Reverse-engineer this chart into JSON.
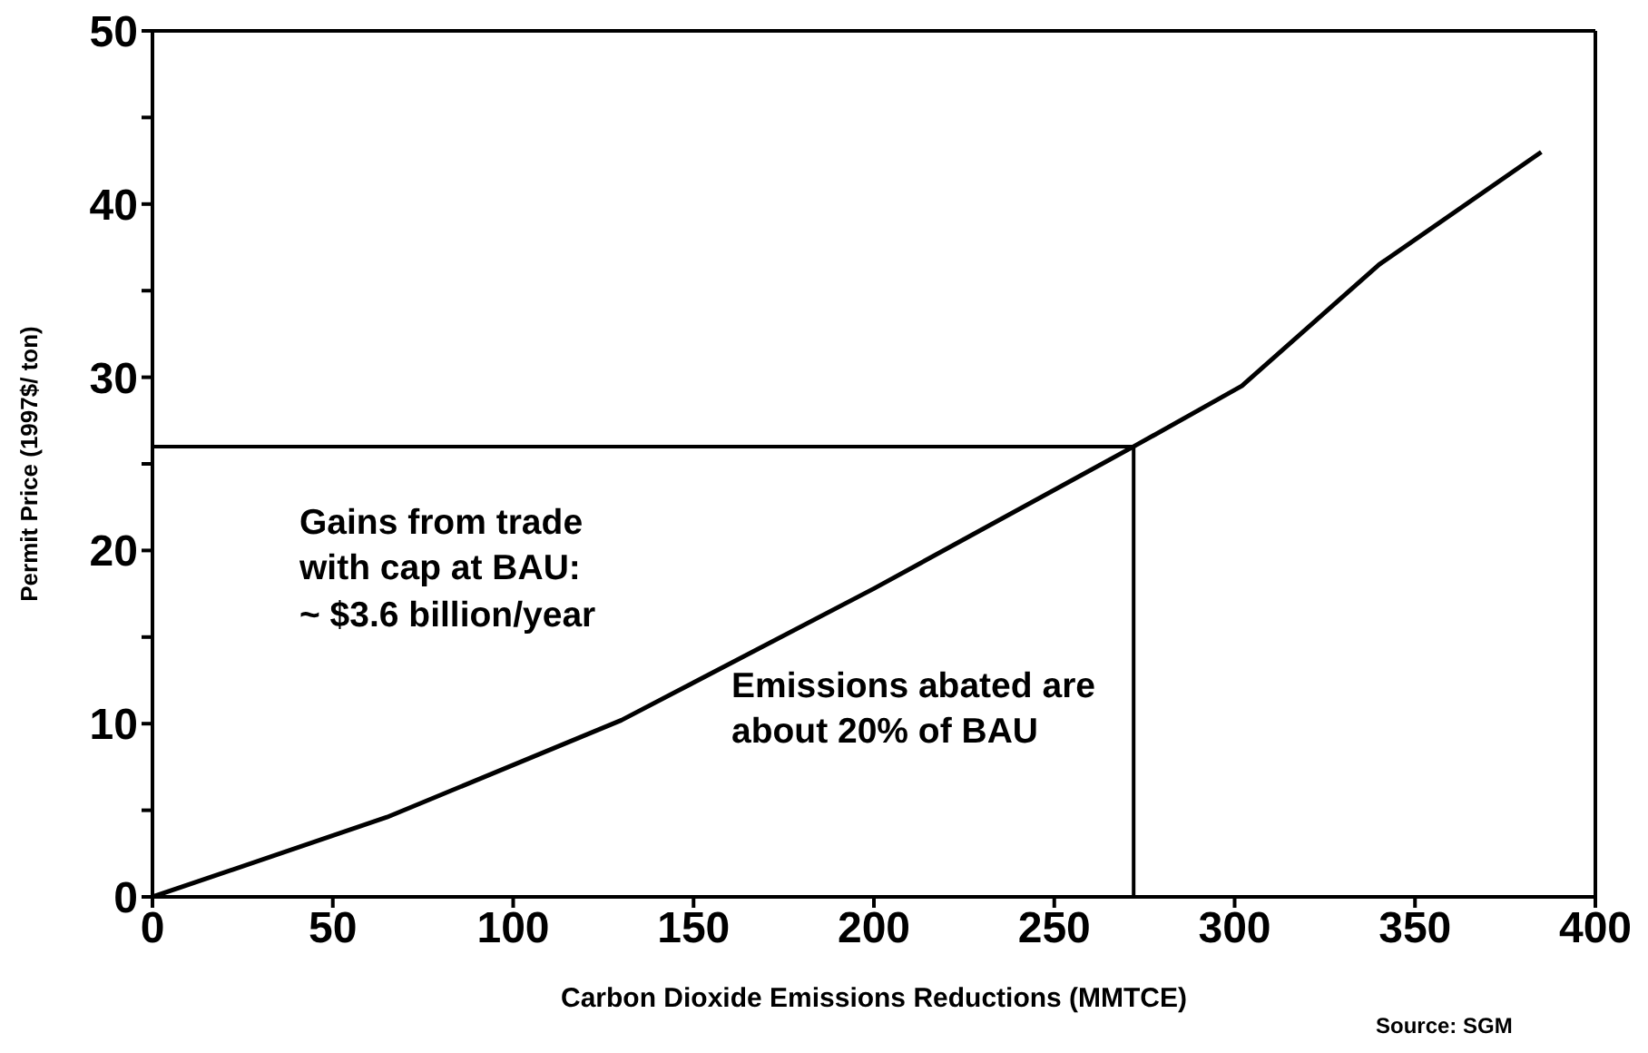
{
  "chart_data": {
    "type": "line",
    "xlabel": "Carbon Dioxide Emissions Reductions (MMTCE)",
    "ylabel": "Permit Price (1997$/ ton)",
    "x": [
      0,
      65,
      130,
      200,
      272,
      302,
      340,
      385
    ],
    "series": [
      {
        "color": "#000000",
        "values": [
          0,
          4.6,
          10.2,
          17.8,
          26,
          29.5,
          36.5,
          43
        ]
      }
    ],
    "xlim": [
      0,
      400
    ],
    "xticks": [
      0,
      50,
      100,
      150,
      200,
      250,
      300,
      350,
      400
    ],
    "ylim": [
      0,
      50
    ],
    "yticks": [
      0,
      {
        "value": 5,
        "label": null
      },
      10,
      {
        "value": 15,
        "label": null
      },
      20,
      {
        "value": 25,
        "label": null
      },
      30,
      {
        "value": 35,
        "label": null
      },
      40,
      {
        "value": 45,
        "label": null
      },
      50
    ],
    "ref_lines": [
      {
        "axis": "y",
        "value": 26
      },
      {
        "axis": "x",
        "value": 272
      }
    ],
    "annotations": [
      "Gains from trade\nwith cap at BAU:\n~ $3.6 billion/year",
      "Emissions abated are\nabout 20% of BAU",
      "Source: SGM"
    ],
    "marker": "none",
    "line_style": "solid"
  }
}
